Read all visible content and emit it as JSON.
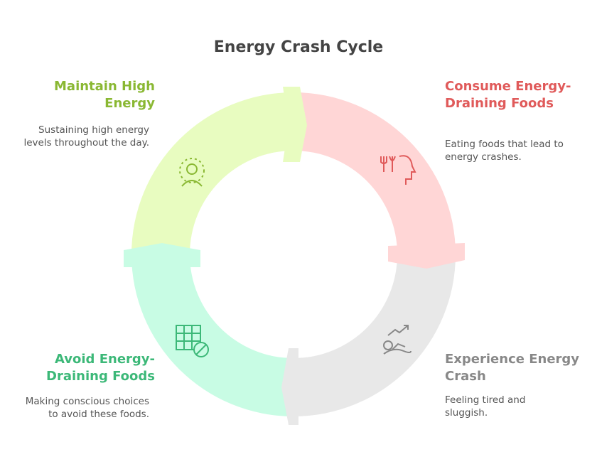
{
  "title": "Energy Crash Cycle",
  "steps": [
    {
      "title": "Maintain High Energy",
      "description": "Sustaining high energy levels throughout the day."
    },
    {
      "title": "Consume Energy-Draining Foods",
      "description": "Eating foods that lead to energy crashes."
    },
    {
      "title": "Experience Energy Crash",
      "description": "Feeling tired and sluggish."
    },
    {
      "title": "Avoid Energy-Draining Foods",
      "description": "Making conscious choices to avoid these foods."
    }
  ]
}
